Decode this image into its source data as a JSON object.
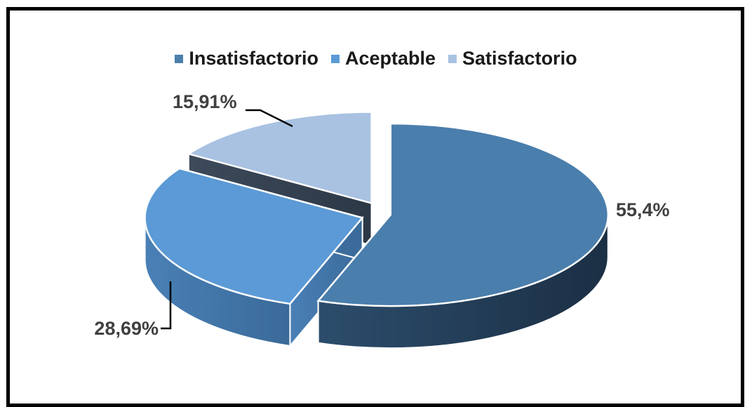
{
  "chart_data": {
    "type": "pie",
    "categories": [
      "Insatisfactorio",
      "Aceptable",
      "Satisfactorio"
    ],
    "values": [
      55.4,
      28.69,
      15.91
    ],
    "value_labels": [
      "55,4%",
      "28,69%",
      "15,91%"
    ],
    "title": "",
    "legend_placement": "top",
    "exploded": true,
    "three_d": true,
    "colors": [
      "#4a7eac",
      "#5b9ad6",
      "#a9c2e2"
    ]
  }
}
